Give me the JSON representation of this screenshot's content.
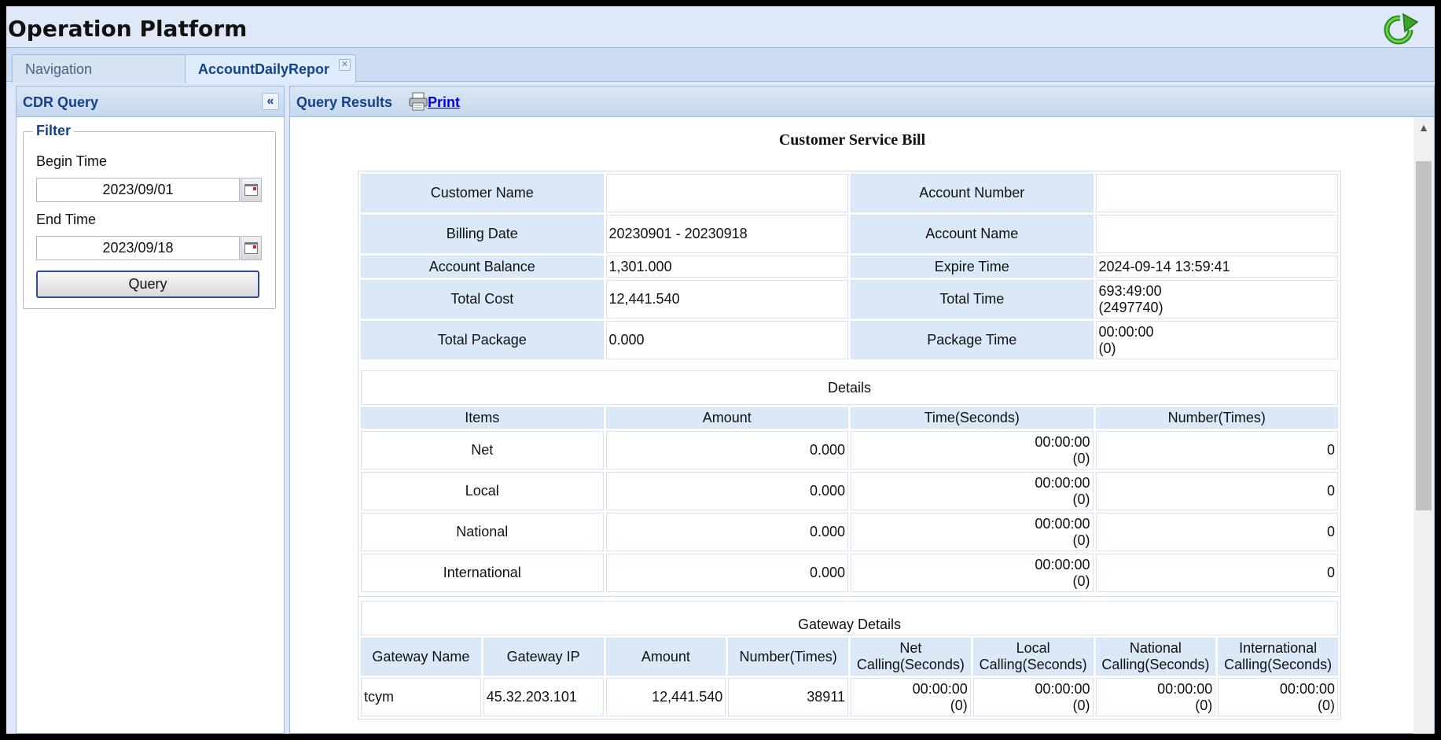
{
  "app": {
    "title": "Operation Platform",
    "refresh_icon": "refresh-icon"
  },
  "tabs": [
    {
      "label": "Navigation",
      "active": false
    },
    {
      "label": "AccountDailyRepor",
      "active": true,
      "close_glyph": "✕"
    }
  ],
  "left_panel": {
    "title": "CDR Query",
    "collapse_glyph": "«",
    "filter": {
      "legend": "Filter",
      "begin_label": "Begin Time",
      "begin_value": "2023/09/01",
      "end_label": "End Time",
      "end_value": "2023/09/18",
      "query_button": "Query"
    }
  },
  "results": {
    "title": "Query Results",
    "print_label": "Print",
    "bill_title": "Customer Service Bill",
    "summary": {
      "customer_name_label": "Customer Name",
      "customer_name": "",
      "account_number_label": "Account Number",
      "account_number": "",
      "billing_date_label": "Billing Date",
      "billing_date": "20230901 - 20230918",
      "account_name_label": "Account Name",
      "account_name": "",
      "account_balance_label": "Account Balance",
      "account_balance": "1,301.000",
      "expire_time_label": "Expire Time",
      "expire_time": "2024-09-14 13:59:41",
      "total_cost_label": "Total Cost",
      "total_cost": "12,441.540",
      "total_time_label": "Total Time",
      "total_time": "693:49:00",
      "total_time_seconds": "(2497740)",
      "total_package_label": "Total Package",
      "total_package": "0.000",
      "package_time_label": "Package Time",
      "package_time": "00:00:00",
      "package_time_seconds": "(0)"
    },
    "details": {
      "title": "Details",
      "headers": [
        "Items",
        "Amount",
        "Time(Seconds)",
        "Number(Times)"
      ],
      "rows": [
        {
          "item": "Net",
          "amount": "0.000",
          "time": "00:00:00",
          "seconds": "(0)",
          "number": "0"
        },
        {
          "item": "Local",
          "amount": "0.000",
          "time": "00:00:00",
          "seconds": "(0)",
          "number": "0"
        },
        {
          "item": "National",
          "amount": "0.000",
          "time": "00:00:00",
          "seconds": "(0)",
          "number": "0"
        },
        {
          "item": "International",
          "amount": "0.000",
          "time": "00:00:00",
          "seconds": "(0)",
          "number": "0"
        }
      ]
    },
    "gateway": {
      "title": "Gateway Details",
      "headers": {
        "name": "Gateway Name",
        "ip": "Gateway IP",
        "amount": "Amount",
        "number": "Number(Times)",
        "net_1": "Net",
        "net_2": "Calling(Seconds)",
        "local_1": "Local",
        "local_2": "Calling(Seconds)",
        "national_1": "National",
        "national_2": "Calling(Seconds)",
        "intl_1": "International",
        "intl_2": "Calling(Seconds)"
      },
      "rows": [
        {
          "name": "tcym",
          "ip": "45.32.203.101",
          "amount": "12,441.540",
          "number": "38911",
          "net_time": "00:00:00",
          "net_sec": "(0)",
          "local_time": "00:00:00",
          "local_sec": "(0)",
          "national_time": "00:00:00",
          "national_sec": "(0)",
          "intl_time": "00:00:00",
          "intl_sec": "(0)"
        }
      ]
    }
  }
}
